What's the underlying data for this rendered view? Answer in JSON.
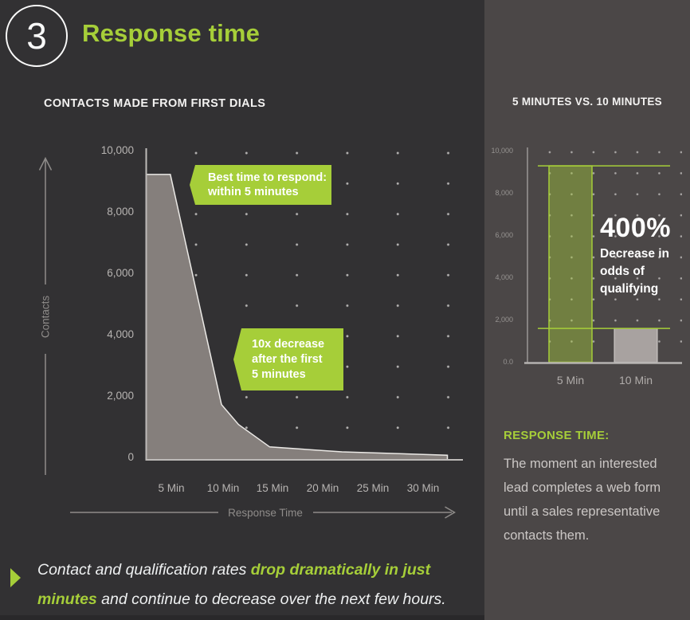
{
  "colors": {
    "accent_green": "#a6ce39",
    "left_background": "#323133",
    "right_background": "#4b4747",
    "area_fill": "#857f7c",
    "gray_bar": "#a8a2a0"
  },
  "header": {
    "number": "3",
    "title": "Response time"
  },
  "left_chart": {
    "heading": "CONTACTS MADE FROM FIRST DIALS",
    "y_axis_label": "Contacts",
    "x_axis_label": "Response Time",
    "callout_best": "Best time to respond:\nwithin 5 minutes",
    "callout_decrease": "10x decrease\nafter the first\n5 minutes"
  },
  "right_panel": {
    "heading": "5 MINUTES VS. 10 MINUTES",
    "stat_value": "400%",
    "stat_caption": "Decrease in\nodds of\nqualifying",
    "definition_label": "RESPONSE TIME:",
    "definition_text": "The moment an interested\nlead completes a web form\nuntil a sales representative\ncontacts them."
  },
  "footer": {
    "line1_normal": "Contact and qualification rates ",
    "line1_bold": "drop dramatically in just",
    "line2_bold": "minutes",
    "line2_normal": " and continue to decrease over the next few hours."
  },
  "chart_data": [
    {
      "type": "area",
      "title": "Contacts made from first dials",
      "xlabel": "Response Time",
      "ylabel": "Contacts",
      "x_unit": "minutes",
      "x": [
        0,
        4.8,
        10,
        11.7,
        14.8,
        22,
        32.5
      ],
      "y": [
        9300,
        9300,
        1800,
        1150,
        420,
        260,
        150
      ],
      "xticks": [
        "5 Min",
        "10 Min",
        "15 Min",
        "20 Min",
        "25 Min",
        "30 Min"
      ],
      "ytick_labels": [
        "10,000",
        "8,000",
        "6,000",
        "4,000",
        "2,000",
        "0"
      ],
      "ylim": [
        0,
        10000
      ],
      "grid": "dotted",
      "annotations": [
        "Best time to respond: within 5 minutes",
        "10x decrease after the first 5 minutes"
      ]
    },
    {
      "type": "bar",
      "title": "5 minutes vs. 10 minutes",
      "categories": [
        "5 Min",
        "10 Min"
      ],
      "values": [
        9300,
        1600
      ],
      "bar_colors": [
        "#a6ce39",
        "#a8a2a0"
      ],
      "yticks": [
        "10,000",
        "8,000",
        "6,000",
        "4,000",
        "2,000",
        "0.0"
      ],
      "ylim": [
        0,
        10000
      ],
      "grid": "dotted",
      "annotation": "400% Decrease in odds of qualifying"
    }
  ]
}
